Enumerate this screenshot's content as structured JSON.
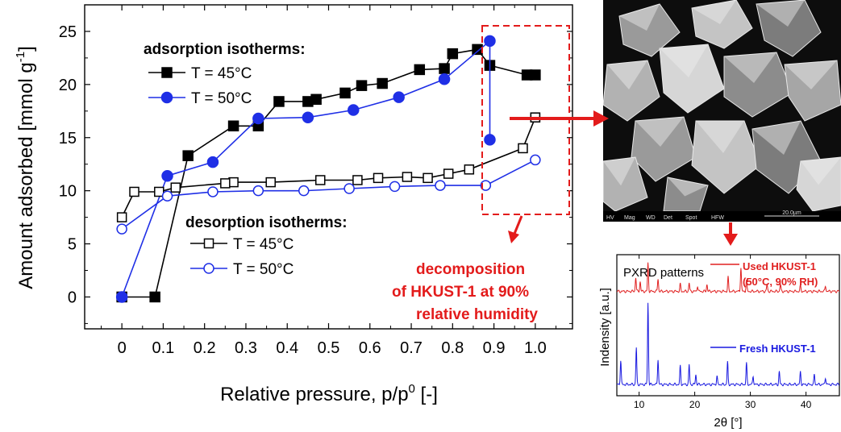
{
  "colors": {
    "black_series": "#000000",
    "blue_series": "#1f2fe6",
    "red_accent": "#e31b1b",
    "pxrd_used": "#e02020",
    "pxrd_fresh": "#1a1ae0"
  },
  "legend": {
    "adsorption_title": "adsorption isotherms:",
    "adsorption_45": "T = 45°C",
    "adsorption_50": "T = 50°C",
    "desorption_title": "desorption isotherms:",
    "desorption_45": "T = 45°C",
    "desorption_50": "T = 50°C"
  },
  "annotation": {
    "line1": "decomposition",
    "line2": "of HKUST-1 at 90%",
    "line3": "relative humidity"
  },
  "sem": {
    "scale_text": "20.0µm",
    "info_labels": [
      "HV",
      "Mag",
      "WD",
      "Det",
      "Spot",
      "HFW"
    ]
  },
  "chart_data": [
    {
      "type": "line",
      "title": "",
      "xlabel_main": "Relative pressure, p/p",
      "xlabel_sup": "0",
      "xlabel_tail": " [-]",
      "ylabel_main": "Amount adsorbed [mmol g",
      "ylabel_sup": "-1",
      "ylabel_tail": "]",
      "xlim": [
        -0.09,
        1.09
      ],
      "ylim": [
        -3,
        27.5
      ],
      "xticks": [
        0,
        0.1,
        0.2,
        0.3,
        0.4,
        0.5,
        0.6,
        0.7,
        0.8,
        0.9,
        1.0
      ],
      "xtick_labels": [
        "0",
        "0.1",
        "0.2",
        "0.3",
        "0.4",
        "0.5",
        "0.6",
        "0.7",
        "0.8",
        "0.9",
        "1.0"
      ],
      "yticks": [
        0,
        5,
        10,
        15,
        20,
        25
      ],
      "ytick_labels": [
        "0",
        "5",
        "10",
        "15",
        "20",
        "25"
      ],
      "legend_position": "top-left",
      "grid": false,
      "series": [
        {
          "name": "T = 45°C",
          "group": "adsorption",
          "marker": "square",
          "filled": true,
          "color": "#000000",
          "x": [
            0.0,
            0.08,
            0.16,
            0.27,
            0.33,
            0.38,
            0.45,
            0.47,
            0.54,
            0.58,
            0.63,
            0.72,
            0.78,
            0.8,
            0.86,
            0.89,
            0.98,
            1.0
          ],
          "y": [
            0,
            0,
            13.3,
            16.1,
            16.1,
            18.4,
            18.4,
            18.6,
            19.2,
            19.9,
            20.1,
            21.4,
            21.5,
            22.9,
            23.3,
            21.8,
            20.9,
            20.9
          ]
        },
        {
          "name": "T = 50°C",
          "group": "adsorption",
          "marker": "circle",
          "filled": true,
          "color": "#1f2fe6",
          "x": [
            0.0,
            0.11,
            0.22,
            0.33,
            0.45,
            0.56,
            0.67,
            0.78,
            0.89,
            0.89
          ],
          "y": [
            0,
            11.4,
            12.7,
            16.8,
            16.9,
            17.6,
            18.8,
            20.5,
            24.1,
            14.8
          ]
        },
        {
          "name": "T = 45°C",
          "group": "desorption",
          "marker": "square",
          "filled": false,
          "color": "#000000",
          "x": [
            1.0,
            1.0,
            0.97,
            0.84,
            0.79,
            0.74,
            0.69,
            0.62,
            0.57,
            0.48,
            0.36,
            0.27,
            0.25,
            0.13,
            0.09,
            0.03,
            0.0
          ],
          "y": [
            16.9,
            16.9,
            14.0,
            12.0,
            11.6,
            11.2,
            11.3,
            11.2,
            11.0,
            11.0,
            10.8,
            10.8,
            10.7,
            10.3,
            9.9,
            9.9,
            7.5
          ]
        },
        {
          "name": "T = 50°C",
          "group": "desorption",
          "marker": "circle",
          "filled": false,
          "color": "#1f2fe6",
          "x": [
            1.0,
            0.88,
            0.77,
            0.66,
            0.55,
            0.44,
            0.33,
            0.22,
            0.11,
            0.0
          ],
          "y": [
            12.9,
            10.5,
            10.5,
            10.4,
            10.2,
            10.0,
            10.0,
            9.9,
            9.5,
            6.4
          ]
        }
      ]
    },
    {
      "type": "line",
      "title": "PXRD patterns",
      "xlabel": "2θ [°]",
      "ylabel": "Indensity [a.u.]",
      "xlim": [
        6,
        46
      ],
      "xticks": [
        10,
        20,
        30,
        40
      ],
      "xtick_labels": [
        "10",
        "20",
        "30",
        "40"
      ],
      "series": [
        {
          "name": "Used HKUST-1",
          "subname": "(50°C, 90% RH)",
          "color": "#e02020",
          "baseline": 0.74,
          "peaks": [
            [
              9.4,
              0.1
            ],
            [
              10.2,
              0.07
            ],
            [
              11.6,
              0.2
            ],
            [
              13.4,
              0.09
            ],
            [
              17.4,
              0.05
            ],
            [
              19.0,
              0.06
            ],
            [
              20.5,
              0.04
            ],
            [
              22.2,
              0.05
            ],
            [
              26.0,
              0.1
            ],
            [
              28.3,
              0.17
            ],
            [
              29.3,
              0.08
            ],
            [
              33.0,
              0.05
            ],
            [
              35.4,
              0.05
            ],
            [
              39.0,
              0.04
            ],
            [
              43.5,
              0.04
            ]
          ]
        },
        {
          "name": "Fresh HKUST-1",
          "subname": "",
          "color": "#1a1ae0",
          "baseline": 0.08,
          "peaks": [
            [
              6.7,
              0.17
            ],
            [
              9.5,
              0.26
            ],
            [
              11.6,
              0.58
            ],
            [
              13.4,
              0.18
            ],
            [
              17.4,
              0.13
            ],
            [
              19.0,
              0.14
            ],
            [
              20.2,
              0.07
            ],
            [
              24.0,
              0.06
            ],
            [
              25.9,
              0.16
            ],
            [
              29.3,
              0.15
            ],
            [
              30.5,
              0.06
            ],
            [
              35.2,
              0.09
            ],
            [
              39.0,
              0.09
            ],
            [
              41.5,
              0.07
            ],
            [
              43.5,
              0.05
            ]
          ]
        }
      ]
    }
  ]
}
